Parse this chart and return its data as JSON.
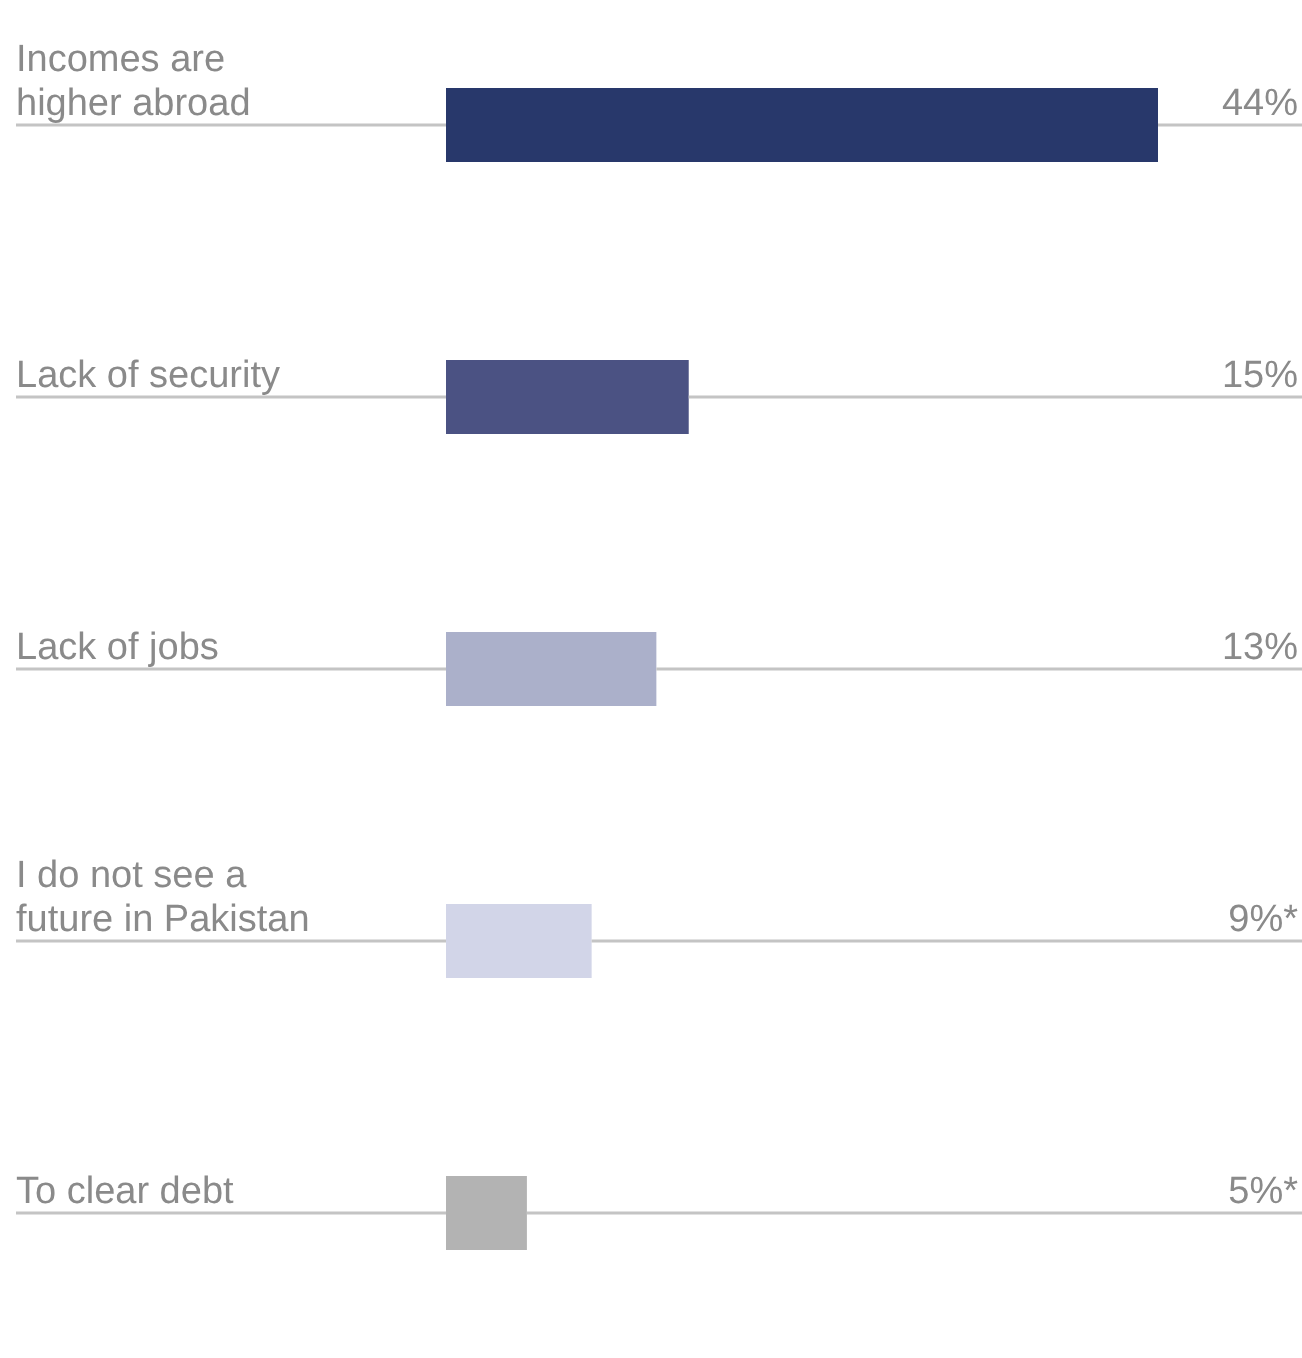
{
  "chart_data": {
    "type": "bar",
    "orientation": "horizontal",
    "categories": [
      "Incomes are higher abroad",
      "Lack of security",
      "Lack of jobs",
      "I do not see a future in Pakistan",
      "To clear debt"
    ],
    "values": [
      44,
      15,
      13,
      9,
      5
    ],
    "colors": [
      "#28386b",
      "#4b5283",
      "#abb0ca",
      "#d2d5e8",
      "#b3b3b3"
    ],
    "value_labels": [
      "44%",
      "15%",
      "13%",
      "9%*",
      "5%*"
    ]
  }
}
